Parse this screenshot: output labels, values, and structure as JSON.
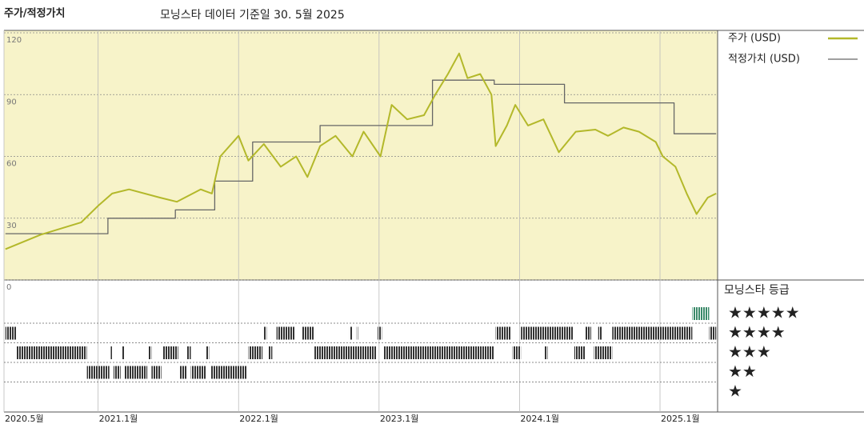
{
  "chart_data": {
    "type": "line",
    "title": "주가/적정가치",
    "subtitle": "모닝스타 데이터 기준일 30. 5월 2025",
    "xlim": [
      2020.33,
      2025.41
    ],
    "xticks": [
      {
        "value": 2020.33,
        "label": "2020.5월"
      },
      {
        "value": 2021.0,
        "label": "2021.1월"
      },
      {
        "value": 2022.0,
        "label": "2022.1월"
      },
      {
        "value": 2023.0,
        "label": "2023.1월"
      },
      {
        "value": 2024.0,
        "label": "2024.1월"
      },
      {
        "value": 2025.0,
        "label": "2025.1월"
      }
    ],
    "ylim": [
      0,
      120
    ],
    "yticks": [
      0,
      30,
      60,
      90,
      120
    ],
    "grid": true,
    "series": [
      {
        "name": "주가 (USD)",
        "color": "#b3b82a",
        "x": [
          2020.34,
          2020.59,
          2020.88,
          2021.0,
          2021.1,
          2021.22,
          2021.44,
          2021.56,
          2021.73,
          2021.81,
          2021.87,
          2022.0,
          2022.07,
          2022.18,
          2022.3,
          2022.41,
          2022.49,
          2022.58,
          2022.69,
          2022.81,
          2022.89,
          2023.01,
          2023.09,
          2023.2,
          2023.32,
          2023.4,
          2023.49,
          2023.57,
          2023.63,
          2023.72,
          2023.8,
          2023.83,
          2023.91,
          2023.97,
          2024.06,
          2024.17,
          2024.28,
          2024.4,
          2024.54,
          2024.63,
          2024.74,
          2024.85,
          2024.97,
          2025.02,
          2025.11,
          2025.19,
          2025.26,
          2025.34,
          2025.4
        ],
        "values": [
          15,
          22,
          28,
          36,
          42,
          44,
          40,
          38,
          44,
          42,
          60,
          70,
          58,
          66,
          55,
          60,
          50,
          65,
          70,
          60,
          72,
          60,
          85,
          78,
          80,
          90,
          100,
          110,
          98,
          100,
          90,
          65,
          75,
          85,
          75,
          78,
          62,
          72,
          73,
          70,
          74,
          72,
          67,
          60,
          55,
          42,
          32,
          40,
          42
        ]
      },
      {
        "name": "적정가치 (USD)",
        "color": "#666666",
        "x": [
          2020.34,
          2021.07,
          2021.07,
          2021.55,
          2021.55,
          2021.83,
          2021.83,
          2022.1,
          2022.1,
          2022.58,
          2022.58,
          2023.38,
          2023.38,
          2023.82,
          2023.82,
          2024.32,
          2024.32,
          2025.1,
          2025.1,
          2025.4
        ],
        "values": [
          22.5,
          22.5,
          30,
          30,
          34,
          34,
          48,
          48,
          67,
          67,
          75,
          75,
          97,
          97,
          95,
          95,
          86,
          86,
          71,
          71
        ]
      }
    ],
    "rating_title": "모닝스타 등급",
    "rating_labels": [
      "★★★★★",
      "★★★★",
      "★★★",
      "★★",
      "★"
    ],
    "rating_colors": [
      "#333333",
      "#333333",
      "#333333",
      "#333333",
      "#3b8a6a"
    ],
    "ratings": [
      {
        "start": 2020.34,
        "end": 2020.42,
        "stars": 4
      },
      {
        "start": 2022.18,
        "end": 2022.2,
        "stars": 4
      },
      {
        "start": 2022.27,
        "end": 2022.4,
        "stars": 4
      },
      {
        "start": 2022.45,
        "end": 2022.54,
        "stars": 4
      },
      {
        "start": 2022.79,
        "end": 2022.81,
        "stars": 4
      },
      {
        "start": 2022.84,
        "end": 2022.85,
        "stars": 4
      },
      {
        "start": 2022.99,
        "end": 2023.02,
        "stars": 4
      },
      {
        "start": 2023.83,
        "end": 2023.94,
        "stars": 4
      },
      {
        "start": 2024.01,
        "end": 2024.38,
        "stars": 4
      },
      {
        "start": 2024.47,
        "end": 2024.51,
        "stars": 4
      },
      {
        "start": 2024.56,
        "end": 2024.59,
        "stars": 4
      },
      {
        "start": 2024.66,
        "end": 2025.23,
        "stars": 4
      },
      {
        "start": 2025.35,
        "end": 2025.4,
        "stars": 4
      },
      {
        "start": 2020.42,
        "end": 2020.92,
        "stars": 3
      },
      {
        "start": 2021.09,
        "end": 2021.1,
        "stars": 3
      },
      {
        "start": 2021.17,
        "end": 2021.19,
        "stars": 3
      },
      {
        "start": 2021.36,
        "end": 2021.38,
        "stars": 3
      },
      {
        "start": 2021.46,
        "end": 2021.57,
        "stars": 3
      },
      {
        "start": 2021.63,
        "end": 2021.66,
        "stars": 3
      },
      {
        "start": 2021.77,
        "end": 2021.79,
        "stars": 3
      },
      {
        "start": 2022.07,
        "end": 2022.17,
        "stars": 3
      },
      {
        "start": 2022.21,
        "end": 2022.24,
        "stars": 3
      },
      {
        "start": 2022.54,
        "end": 2022.98,
        "stars": 3
      },
      {
        "start": 2023.03,
        "end": 2023.82,
        "stars": 3
      },
      {
        "start": 2023.95,
        "end": 2024.01,
        "stars": 3
      },
      {
        "start": 2024.18,
        "end": 2024.2,
        "stars": 3
      },
      {
        "start": 2024.39,
        "end": 2024.47,
        "stars": 3
      },
      {
        "start": 2024.53,
        "end": 2024.66,
        "stars": 3
      },
      {
        "start": 2020.92,
        "end": 2021.08,
        "stars": 2
      },
      {
        "start": 2021.11,
        "end": 2021.16,
        "stars": 2
      },
      {
        "start": 2021.19,
        "end": 2021.35,
        "stars": 2
      },
      {
        "start": 2021.38,
        "end": 2021.45,
        "stars": 2
      },
      {
        "start": 2021.58,
        "end": 2021.63,
        "stars": 2
      },
      {
        "start": 2021.66,
        "end": 2021.77,
        "stars": 2
      },
      {
        "start": 2021.8,
        "end": 2022.06,
        "stars": 2
      },
      {
        "start": 2025.23,
        "end": 2025.35,
        "stars": 5
      }
    ]
  }
}
